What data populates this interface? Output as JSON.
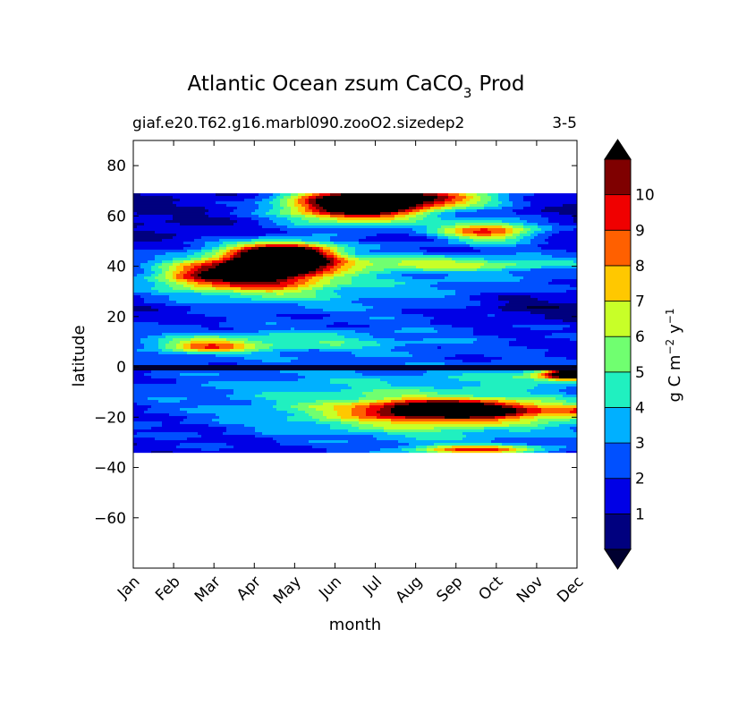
{
  "chart_data": {
    "type": "heatmap",
    "title_main": "Atlantic Ocean zsum CaCO",
    "title_subscript": "3",
    "title_end": "Prod",
    "subtitle_left": "giaf.e20.T62.g16.marbl090.zooO2.sizedep2",
    "subtitle_right": "3-5",
    "xlabel": "month",
    "ylabel": "latitude",
    "x_categories": [
      "Jan",
      "Feb",
      "Mar",
      "Apr",
      "May",
      "Jun",
      "Jul",
      "Aug",
      "Sep",
      "Oct",
      "Nov",
      "Dec"
    ],
    "y_ticks": [
      {
        "value": 80,
        "label": "80"
      },
      {
        "value": 60,
        "label": "60"
      },
      {
        "value": 40,
        "label": "40"
      },
      {
        "value": 20,
        "label": "20"
      },
      {
        "value": 0,
        "label": "0"
      },
      {
        "value": -20,
        "label": "−20"
      },
      {
        "value": -40,
        "label": "−40"
      },
      {
        "value": -60,
        "label": "−60"
      }
    ],
    "ylim": [
      -80,
      90
    ],
    "data_lat_range": [
      -34,
      69
    ],
    "colorbar": {
      "label_main": "g C m",
      "label_exp1": "−2",
      "label_mid": "y",
      "label_exp2": "−1",
      "levels": [
        0,
        1,
        2,
        3,
        4,
        5,
        6,
        7,
        8,
        9,
        10,
        11
      ],
      "tick_labels": [
        "1",
        "2",
        "3",
        "4",
        "5",
        "6",
        "7",
        "8",
        "9",
        "10"
      ],
      "colors": [
        "#00007f",
        "#0000e6",
        "#0050ff",
        "#00b0ff",
        "#20f0c0",
        "#70ff70",
        "#c8ff28",
        "#ffc800",
        "#ff6000",
        "#f00000",
        "#7f0000"
      ],
      "under_color": "#000030",
      "over_color": "#000000"
    },
    "features": [
      {
        "month": 3.3,
        "lat": 39,
        "amp": 11,
        "sx": 1.1,
        "sy": 6
      },
      {
        "month": 3.9,
        "lat": 45,
        "amp": 9,
        "sx": 0.8,
        "sy": 3
      },
      {
        "month": 5.5,
        "lat": 64,
        "amp": 12,
        "sx": 1.3,
        "sy": 5
      },
      {
        "month": 7.2,
        "lat": 67,
        "amp": 7,
        "sx": 1.5,
        "sy": 3
      },
      {
        "month": 8.8,
        "lat": 54,
        "amp": 8,
        "sx": 0.9,
        "sy": 3
      },
      {
        "month": 1.5,
        "lat": 36,
        "amp": 5,
        "sx": 0.8,
        "sy": 4
      },
      {
        "month": 7.5,
        "lat": 41,
        "amp": 4,
        "sx": 2.5,
        "sy": 2
      },
      {
        "month": 1.8,
        "lat": 8,
        "amp": 5,
        "sx": 0.8,
        "sy": 2
      },
      {
        "month": 3.5,
        "lat": 10,
        "amp": 3,
        "sx": 2.5,
        "sy": 3
      },
      {
        "month": 8.0,
        "lat": -17,
        "amp": 9,
        "sx": 1.5,
        "sy": 2.5
      },
      {
        "month": 7.5,
        "lat": -20,
        "amp": 4.5,
        "sx": 2.5,
        "sy": 6
      },
      {
        "month": 10.9,
        "lat": -3,
        "amp": 10,
        "sx": 0.5,
        "sy": 1.5
      },
      {
        "month": 10.5,
        "lat": -4,
        "amp": 3,
        "sx": 1.2,
        "sy": 2
      },
      {
        "month": 8.5,
        "lat": -33,
        "amp": 7,
        "sx": 1.2,
        "sy": 1.5
      },
      {
        "month": 11.5,
        "lat": -18,
        "amp": 5,
        "sx": 0.8,
        "sy": 2
      },
      {
        "month": 6.0,
        "lat": 30,
        "amp": 2.2,
        "sx": 4,
        "sy": 10
      },
      {
        "month": 6.0,
        "lat": -10,
        "amp": 2.2,
        "sx": 4,
        "sy": 10
      },
      {
        "month": 9.8,
        "lat": 25,
        "amp": -1.5,
        "sx": 1.5,
        "sy": 5
      }
    ]
  }
}
